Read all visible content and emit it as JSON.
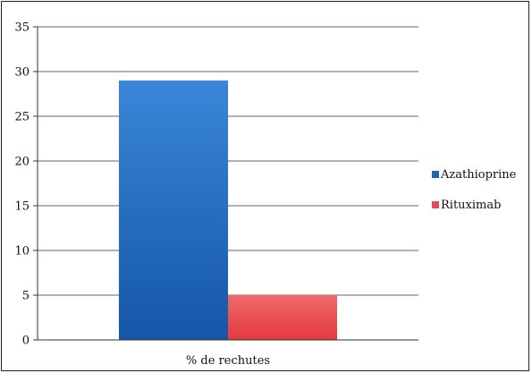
{
  "chart_data": {
    "type": "bar",
    "categories": [
      "% de rechutes"
    ],
    "series": [
      {
        "name": "Azathioprine",
        "values": [
          29
        ],
        "color": "#1f63b8"
      },
      {
        "name": "Rituximab",
        "values": [
          5
        ],
        "color": "#e8474b"
      }
    ],
    "ylim": [
      0,
      35
    ],
    "yticks": [
      0,
      5,
      10,
      15,
      20,
      25,
      30,
      35
    ],
    "grid": true,
    "legend": "right"
  }
}
